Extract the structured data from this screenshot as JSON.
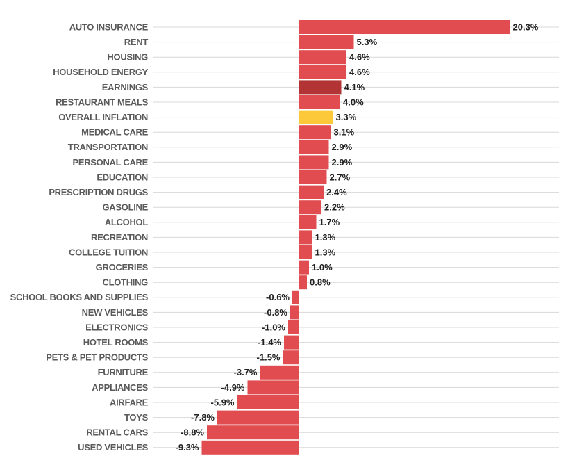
{
  "chart_data": {
    "type": "bar",
    "orientation": "horizontal",
    "categories": [
      "AUTO INSURANCE",
      "RENT",
      "HOUSING",
      "HOUSEHOLD ENERGY",
      "EARNINGS",
      "RESTAURANT MEALS",
      "OVERALL INFLATION",
      "MEDICAL CARE",
      "TRANSPORTATION",
      "PERSONAL CARE",
      "EDUCATION",
      "PRESCRIPTION DRUGS",
      "GASOLINE",
      "ALCOHOL",
      "RECREATION",
      "COLLEGE TUITION",
      "GROCERIES",
      "CLOTHING",
      "SCHOOL BOOKS AND SUPPLIES",
      "NEW VEHICLES",
      "ELECTRONICS",
      "HOTEL ROOMS",
      "PETS & PET PRODUCTS",
      "FURNITURE",
      "APPLIANCES",
      "AIRFARE",
      "TOYS",
      "RENTAL CARS",
      "USED VEHICLES"
    ],
    "values": [
      20.3,
      5.3,
      4.6,
      4.6,
      4.1,
      4.0,
      3.3,
      3.1,
      2.9,
      2.9,
      2.7,
      2.4,
      2.2,
      1.7,
      1.3,
      1.3,
      1.0,
      0.8,
      -0.6,
      -0.8,
      -1.0,
      -1.4,
      -1.5,
      -3.7,
      -4.9,
      -5.9,
      -7.8,
      -8.8,
      -9.3
    ],
    "value_labels": [
      "20.3%",
      "5.3%",
      "4.6%",
      "4.6%",
      "4.1%",
      "4.0%",
      "3.3%",
      "3.1%",
      "2.9%",
      "2.9%",
      "2.7%",
      "2.4%",
      "2.2%",
      "1.7%",
      "1.3%",
      "1.3%",
      "1.0%",
      "0.8%",
      "-0.6%",
      "-0.8%",
      "-1.0%",
      "-1.4%",
      "-1.5%",
      "-3.7%",
      "-4.9%",
      "-5.9%",
      "-7.8%",
      "-8.8%",
      "-9.3%"
    ],
    "colors": [
      "#e04c4f",
      "#e04c4f",
      "#e04c4f",
      "#e04c4f",
      "#b33434",
      "#e04c4f",
      "#fcc93a",
      "#e04c4f",
      "#e04c4f",
      "#e04c4f",
      "#e04c4f",
      "#e04c4f",
      "#e04c4f",
      "#e04c4f",
      "#e04c4f",
      "#e04c4f",
      "#e04c4f",
      "#e04c4f",
      "#e04c4f",
      "#e04c4f",
      "#e04c4f",
      "#e04c4f",
      "#e04c4f",
      "#e04c4f",
      "#e04c4f",
      "#e04c4f",
      "#e04c4f",
      "#e04c4f",
      "#e04c4f"
    ],
    "grid": true
  }
}
